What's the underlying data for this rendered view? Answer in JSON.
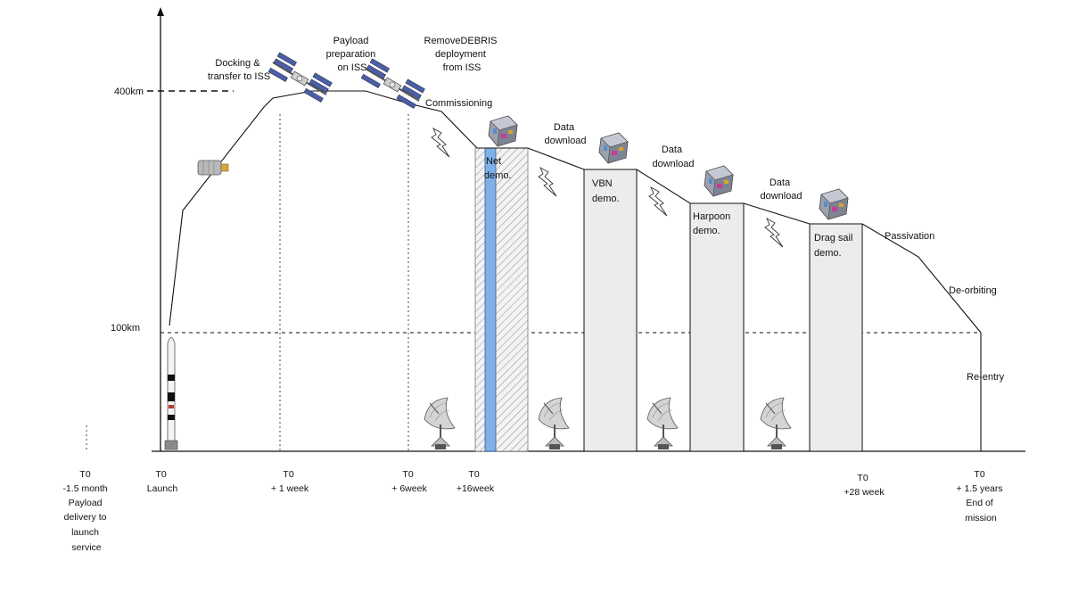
{
  "axis": {
    "altitude_labels": {
      "alt400": "400km",
      "alt100": "100km"
    }
  },
  "events": {
    "docking": [
      "Docking &",
      "transfer to ISS"
    ],
    "payload_prep": [
      "Payload",
      "preparation",
      "on ISS"
    ],
    "deployment": [
      "RemoveDEBRIS",
      "deployment",
      "from ISS"
    ],
    "commissioning": "Commissioning",
    "data_download": [
      "Data",
      "download"
    ],
    "passivation": "Passivation",
    "de_orbiting": "De-orbiting",
    "re_entry": "Re-entry"
  },
  "demos": {
    "net": [
      "Net",
      "demo."
    ],
    "vbn": [
      "VBN",
      "demo."
    ],
    "harpoon": [
      "Harpoon",
      "demo."
    ],
    "drag_sail": [
      "Drag sail",
      "demo."
    ]
  },
  "timeline": {
    "t_minus": [
      "T0",
      "-1.5 month",
      "Payload",
      "delivery to",
      "launch",
      "service"
    ],
    "launch": [
      "T0",
      "Launch"
    ],
    "week1": [
      "T0",
      "+ 1 week"
    ],
    "week6": [
      "T0",
      "+ 6week"
    ],
    "week16": [
      "T0",
      "+16week"
    ],
    "week28": [
      "T0",
      "+28 week"
    ],
    "end": [
      "T0",
      "+ 1.5 years",
      "End of",
      "mission"
    ]
  },
  "icons": {
    "rocket": "rocket-icon",
    "cargo": "cargo-vehicle-icon",
    "iss": "iss-icon",
    "spacecraft": "spacecraft-icon",
    "ground_station": "ground-station-dish-icon",
    "lightning": "lightning-icon"
  },
  "colors": {
    "net_demo_stripe": "#7fb0e6",
    "demo_box": "#ececec"
  }
}
